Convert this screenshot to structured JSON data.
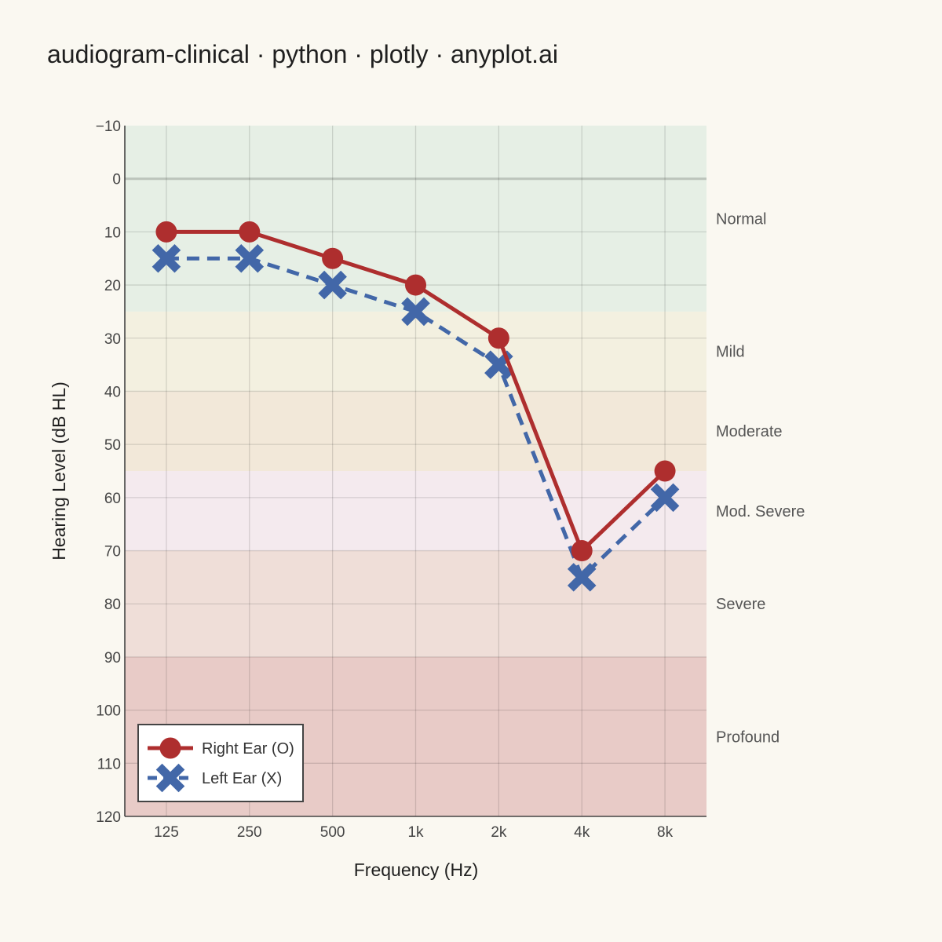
{
  "chart_data": {
    "type": "line",
    "title": "audiogram-clinical · python · plotly · anyplot.ai",
    "xlabel": "Frequency (Hz)",
    "ylabel": "Hearing Level (dB HL)",
    "categories": [
      "125",
      "250",
      "500",
      "1k",
      "2k",
      "4k",
      "8k"
    ],
    "ylim": [
      -10,
      120
    ],
    "y_reversed": true,
    "yticks": [
      "−10",
      "0",
      "10",
      "20",
      "30",
      "40",
      "50",
      "60",
      "70",
      "80",
      "90",
      "100",
      "110",
      "120"
    ],
    "ytick_values": [
      -10,
      0,
      10,
      20,
      30,
      40,
      50,
      60,
      70,
      80,
      90,
      100,
      110,
      120
    ],
    "grid": true,
    "legend_position": "bottom-left",
    "series": [
      {
        "name": "Right Ear (O)",
        "values": [
          10,
          10,
          15,
          20,
          30,
          70,
          55
        ],
        "color": "#AE2E2E",
        "marker": "circle",
        "dash": "solid"
      },
      {
        "name": "Left Ear (X)",
        "values": [
          15,
          15,
          20,
          25,
          35,
          75,
          60
        ],
        "color": "#4267A8",
        "marker": "x",
        "dash": "dashed"
      }
    ],
    "bands": [
      {
        "label": "Normal",
        "from": -10,
        "to": 25,
        "color": "#E6EFE5"
      },
      {
        "label": "Mild",
        "from": 25,
        "to": 40,
        "color": "#F3F0E0"
      },
      {
        "label": "Moderate",
        "from": 40,
        "to": 55,
        "color": "#F2E8D9"
      },
      {
        "label": "Mod. Severe",
        "from": 55,
        "to": 70,
        "color": "#F4EAEE"
      },
      {
        "label": "Severe",
        "from": 70,
        "to": 90,
        "color": "#EFDED8"
      },
      {
        "label": "Profound",
        "from": 90,
        "to": 120,
        "color": "#E8CBC7"
      }
    ]
  }
}
